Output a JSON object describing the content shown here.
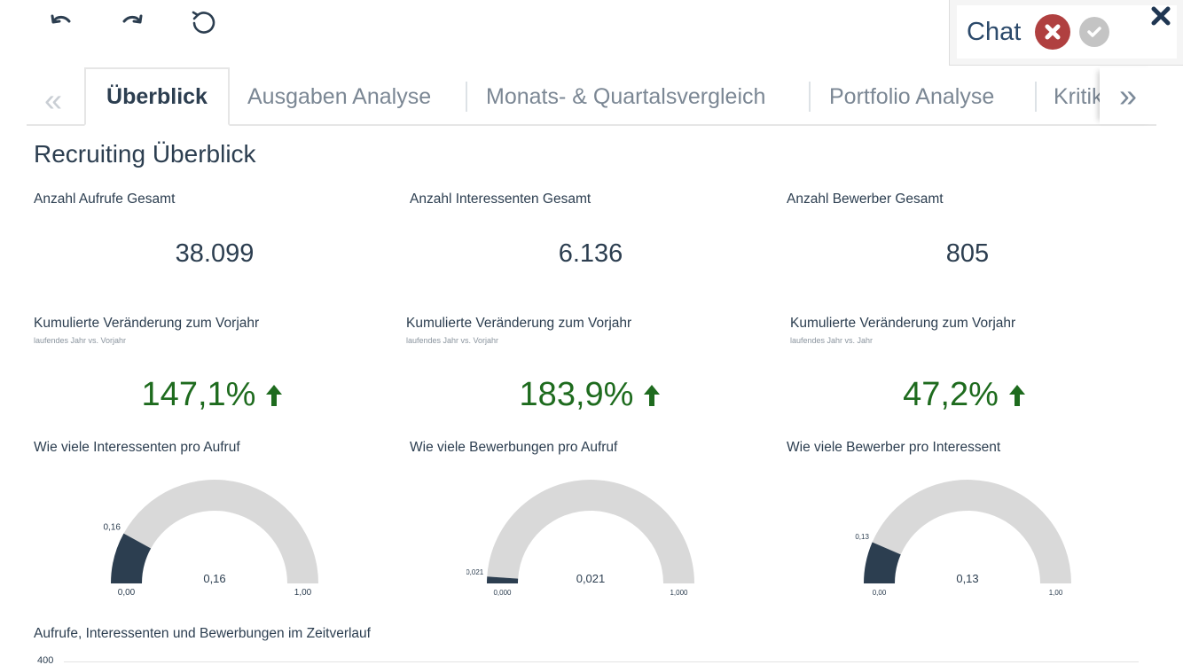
{
  "toolbar": {
    "undo_icon": "undo-icon",
    "redo_icon": "redo-icon",
    "reset_icon": "reset-icon"
  },
  "chat": {
    "title": "Chat",
    "reject_icon": "times-circle-icon",
    "accept_icon": "check-circle-icon",
    "close_icon": "close-icon",
    "colors": {
      "reject": "#b04040",
      "accept": "#c4c4c4"
    }
  },
  "tabs": {
    "prev_icon": "double-chevron-left-icon",
    "next_icon": "double-chevron-right-icon",
    "items": [
      {
        "label": "Überblick",
        "active": true
      },
      {
        "label": "Ausgaben Analyse",
        "active": false
      },
      {
        "label": "Monats- & Quartalsvergleich",
        "active": false
      },
      {
        "label": "Portfolio Analyse",
        "active": false
      },
      {
        "label": "Kritik",
        "active": false
      }
    ]
  },
  "page": {
    "title": "Recruiting Überblick"
  },
  "kpis": [
    {
      "label": "Anzahl Aufrufe Gesamt",
      "value": "38.099"
    },
    {
      "label": "Anzahl Interessenten Gesamt",
      "value": "6.136"
    },
    {
      "label": "Anzahl Bewerber Gesamt",
      "value": "805"
    }
  ],
  "changes": [
    {
      "label": "Kumulierte Veränderung zum Vorjahr",
      "sublabel": "laufendes Jahr vs. Vorjahr",
      "value": "147,1%",
      "trend": "up"
    },
    {
      "label": "Kumulierte Veränderung zum Vorjahr",
      "sublabel": "laufendes Jahr vs. Vorjahr",
      "value": "183,9%",
      "trend": "up"
    },
    {
      "label": "Kumulierte Veränderung zum Vorjahr",
      "sublabel": "laufendes Jahr vs. Jahr",
      "value": "47,2%",
      "trend": "up"
    }
  ],
  "colors": {
    "positive": "#1e6b1e",
    "gauge_fill": "#2c3e50",
    "gauge_track": "#d9d9d9"
  },
  "gauges": [
    {
      "label": "Wie viele Interessenten pro Aufruf",
      "value": 0.16,
      "value_label": "0,16",
      "min_label": "0,00",
      "max_label": "1,00",
      "marker_label": "0,16"
    },
    {
      "label": "Wie viele Bewerbungen pro Aufruf",
      "value": 0.021,
      "value_label": "0,021",
      "min_label": "0,000",
      "max_label": "1,000",
      "marker_label": "0,021"
    },
    {
      "label": "Wie viele Bewerber pro Interessent",
      "value": 0.13,
      "value_label": "0,13",
      "min_label": "0,00",
      "max_label": "1,00",
      "marker_label": "0,13"
    }
  ],
  "timeline": {
    "title": "Aufrufe, Interessenten und Bewerbungen im Zeitverlauf",
    "y_tick_top": "400"
  }
}
